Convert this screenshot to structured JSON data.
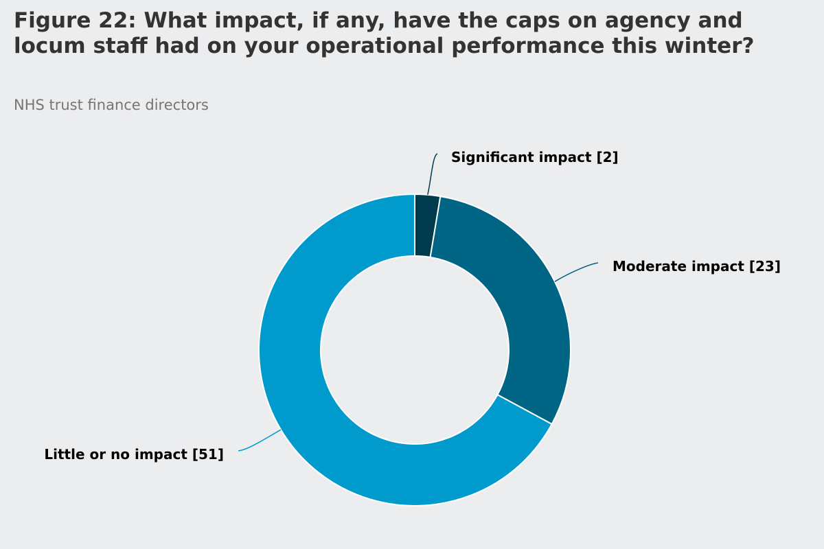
{
  "chart_data": {
    "type": "pie",
    "title": "Figure 22: What impact, if any, have the caps on agency and locum staff had on your operational performance this winter?",
    "subtitle": "NHS trust finance directors",
    "slices": [
      {
        "label": "Significant impact [2]",
        "value": 2,
        "color": "#003a4d"
      },
      {
        "label": "Moderate impact [23]",
        "value": 23,
        "color": "#006485"
      },
      {
        "label": "Little or no impact [51]",
        "value": 51,
        "color": "#009acd"
      }
    ],
    "donut": true,
    "legend": "none"
  }
}
